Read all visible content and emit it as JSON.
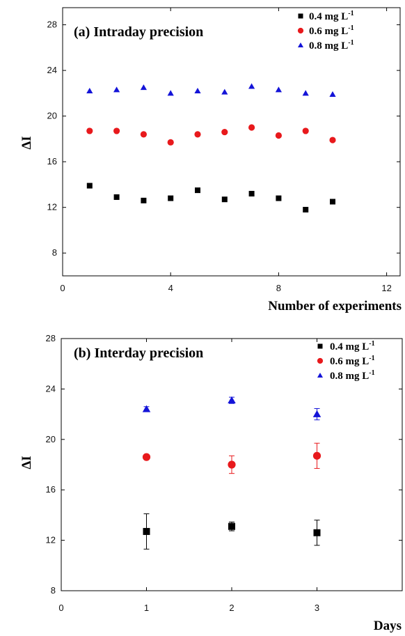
{
  "chart_data": [
    {
      "type": "scatter",
      "title": "(a) Intraday precision",
      "xlabel": "Number of experiments",
      "ylabel": "ΔI",
      "xlim": [
        0,
        12.5
      ],
      "ylim": [
        6,
        29.5
      ],
      "xticks": [
        0,
        4,
        8,
        12
      ],
      "yticks": [
        8,
        12,
        16,
        20,
        24,
        28
      ],
      "legend_position": "top-right",
      "series": [
        {
          "name": "0.4 mg L",
          "name_sup": "-1",
          "marker": "square",
          "color": "#000000",
          "x": [
            1,
            2,
            3,
            4,
            5,
            6,
            7,
            8,
            9,
            10
          ],
          "y": [
            13.9,
            12.9,
            12.6,
            12.8,
            13.5,
            12.7,
            13.2,
            12.8,
            11.8,
            12.5
          ]
        },
        {
          "name": "0.6 mg L",
          "name_sup": "-1",
          "marker": "circle",
          "color": "#e8191c",
          "x": [
            1,
            2,
            3,
            4,
            5,
            6,
            7,
            8,
            9,
            10
          ],
          "y": [
            18.7,
            18.7,
            18.4,
            17.7,
            18.4,
            18.6,
            19.0,
            18.3,
            18.7,
            17.9
          ]
        },
        {
          "name": "0.8 mg L",
          "name_sup": "-1",
          "marker": "triangle",
          "color": "#1414d8",
          "x": [
            1,
            2,
            3,
            4,
            5,
            6,
            7,
            8,
            9,
            10
          ],
          "y": [
            22.2,
            22.3,
            22.5,
            22.0,
            22.2,
            22.1,
            22.6,
            22.3,
            22.0,
            21.9
          ]
        }
      ]
    },
    {
      "type": "scatter",
      "title": "(b) Interday precision",
      "xlabel": "Days",
      "ylabel": "ΔI",
      "xlim": [
        0,
        4
      ],
      "ylim": [
        8,
        28
      ],
      "xticks": [
        0,
        1,
        2,
        3
      ],
      "yticks": [
        8,
        12,
        16,
        20,
        24,
        28
      ],
      "legend_position": "top-right",
      "series": [
        {
          "name": "0.4 mg L",
          "name_sup": "-1",
          "marker": "square",
          "color": "#000000",
          "x": [
            1,
            2,
            3
          ],
          "y": [
            12.7,
            13.1,
            12.6
          ],
          "error": [
            1.4,
            0.35,
            1.0
          ]
        },
        {
          "name": "0.6 mg L",
          "name_sup": "-1",
          "marker": "circle",
          "color": "#e8191c",
          "x": [
            1,
            2,
            3
          ],
          "y": [
            18.6,
            18.0,
            18.7
          ],
          "error": [
            0.0,
            0.7,
            1.0
          ]
        },
        {
          "name": "0.8 mg L",
          "name_sup": "-1",
          "marker": "triangle",
          "color": "#1414d8",
          "x": [
            1,
            2,
            3
          ],
          "y": [
            22.4,
            23.1,
            22.0
          ],
          "error": [
            0.2,
            0.25,
            0.45
          ]
        }
      ]
    }
  ]
}
